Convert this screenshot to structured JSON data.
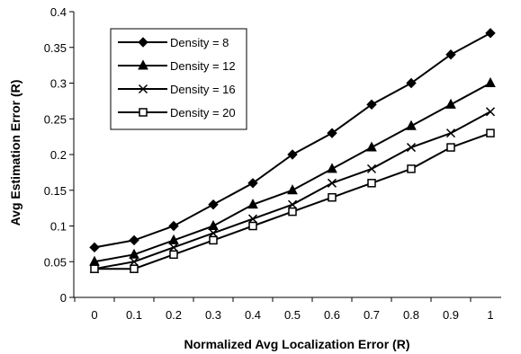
{
  "chart_data": {
    "type": "line",
    "title": "",
    "xlabel": "Normalized Avg Localization Error (R)",
    "ylabel": "Avg Estimation Error (R)",
    "x": [
      0,
      0.1,
      0.2,
      0.3,
      0.4,
      0.5,
      0.6,
      0.7,
      0.8,
      0.9,
      1
    ],
    "x_tick_labels": [
      "0",
      "0.1",
      "0.2",
      "0.3",
      "0.4",
      "0.5",
      "0.6",
      "0.7",
      "0.8",
      "0.9",
      "1"
    ],
    "ylim": [
      0,
      0.4
    ],
    "y_tick_labels": [
      "0",
      "0.05",
      "0.1",
      "0.15",
      "0.2",
      "0.25",
      "0.3",
      "0.35",
      "0.4"
    ],
    "y_ticks": [
      0,
      0.05,
      0.1,
      0.15,
      0.2,
      0.25,
      0.3,
      0.35,
      0.4
    ],
    "grid": false,
    "legend_position": "top-left",
    "series": [
      {
        "name": "Density = 8",
        "marker": "diamond",
        "color": "#000000",
        "values": [
          0.07,
          0.08,
          0.1,
          0.13,
          0.16,
          0.2,
          0.23,
          0.27,
          0.3,
          0.34,
          0.37
        ]
      },
      {
        "name": "Density = 12",
        "marker": "triangle",
        "color": "#000000",
        "values": [
          0.05,
          0.06,
          0.08,
          0.1,
          0.13,
          0.15,
          0.18,
          0.21,
          0.24,
          0.27,
          0.3
        ]
      },
      {
        "name": "Density = 16",
        "marker": "x",
        "color": "#000000",
        "values": [
          0.04,
          0.05,
          0.07,
          0.09,
          0.11,
          0.13,
          0.16,
          0.18,
          0.21,
          0.23,
          0.26
        ]
      },
      {
        "name": "Density = 20",
        "marker": "square",
        "color": "#000000",
        "values": [
          0.04,
          0.04,
          0.06,
          0.08,
          0.1,
          0.12,
          0.14,
          0.16,
          0.18,
          0.21,
          0.23
        ]
      }
    ]
  }
}
